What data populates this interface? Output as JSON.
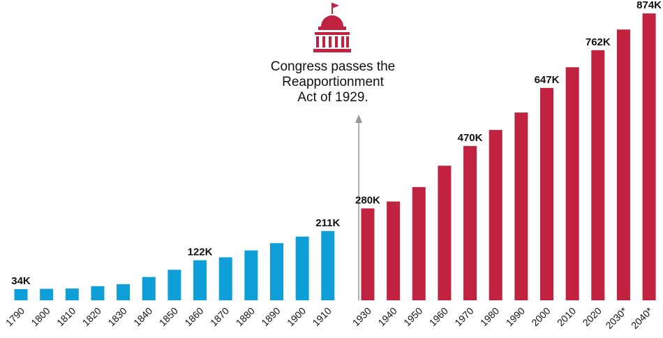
{
  "chart_data": {
    "type": "bar",
    "categories": [
      "1790",
      "1800",
      "1810",
      "1820",
      "1830",
      "1840",
      "1850",
      "1860",
      "1870",
      "1880",
      "1890",
      "1900",
      "1910",
      "1930",
      "1940",
      "1950",
      "1960",
      "1970",
      "1980",
      "1990",
      "2000",
      "2010",
      "2020",
      "2030*",
      "2040*"
    ],
    "values": [
      34,
      35,
      36,
      43,
      49,
      71,
      93,
      122,
      131,
      152,
      174,
      194,
      211,
      280,
      301,
      345,
      410,
      470,
      519,
      572,
      647,
      710,
      762,
      825,
      874
    ],
    "value_labels": [
      "34K",
      null,
      null,
      null,
      null,
      null,
      null,
      "122K",
      null,
      null,
      null,
      null,
      "211K",
      "280K",
      null,
      null,
      null,
      "470K",
      null,
      null,
      "647K",
      null,
      "762K",
      null,
      "874K"
    ],
    "colors": [
      "#0f9fd8",
      "#0f9fd8",
      "#0f9fd8",
      "#0f9fd8",
      "#0f9fd8",
      "#0f9fd8",
      "#0f9fd8",
      "#0f9fd8",
      "#0f9fd8",
      "#0f9fd8",
      "#0f9fd8",
      "#0f9fd8",
      "#0f9fd8",
      "#c0223f",
      "#c0223f",
      "#c0223f",
      "#c0223f",
      "#c0223f",
      "#c0223f",
      "#c0223f",
      "#c0223f",
      "#c0223f",
      "#c0223f",
      "#c0223f",
      "#c0223f"
    ],
    "annotation": [
      "Congress passes the",
      "Reapportionment",
      "Act of 1929."
    ]
  }
}
